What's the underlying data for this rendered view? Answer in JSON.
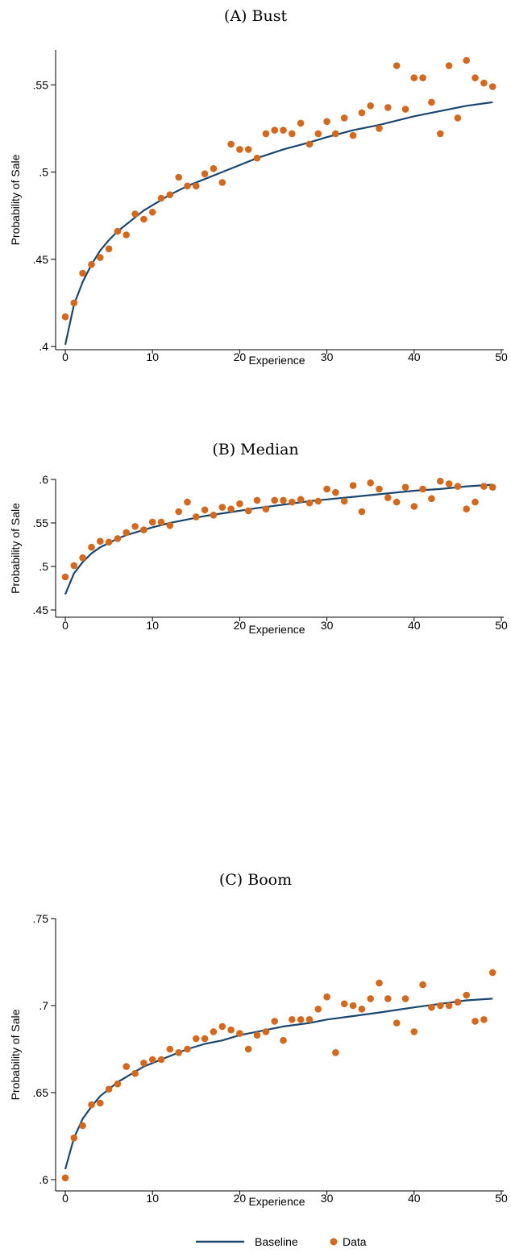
{
  "colors": {
    "baseline": "#1a476f",
    "data": "#d2691e",
    "axis": "#000000"
  },
  "legend": {
    "position": "bottom-center",
    "items": [
      "Baseline",
      "Data"
    ]
  },
  "chart_data": [
    {
      "type": "scatter",
      "title": "(A) Bust",
      "xlabel": "Experience",
      "ylabel": "Probability of Sale",
      "xlim": [
        0,
        50
      ],
      "ylim": [
        0.4,
        0.57
      ],
      "xticks": [
        0,
        10,
        20,
        30,
        40,
        50
      ],
      "xtick_labels": [
        "0",
        "10",
        "20",
        "30",
        "40",
        "50"
      ],
      "yticks": [
        0.4,
        0.45,
        0.5,
        0.55
      ],
      "ytick_labels": [
        ".4",
        ".45",
        ".5",
        ".55"
      ],
      "grid": false,
      "series": [
        {
          "name": "Baseline",
          "kind": "line",
          "x": [
            0,
            1,
            2,
            3,
            4,
            5,
            6,
            7,
            8,
            9,
            10,
            12,
            14,
            16,
            18,
            20,
            22,
            25,
            28,
            30,
            33,
            36,
            40,
            43,
            46,
            49
          ],
          "y": [
            0.401,
            0.424,
            0.437,
            0.447,
            0.455,
            0.461,
            0.466,
            0.47,
            0.474,
            0.478,
            0.481,
            0.487,
            0.492,
            0.496,
            0.5,
            0.504,
            0.508,
            0.513,
            0.517,
            0.52,
            0.524,
            0.527,
            0.532,
            0.535,
            0.538,
            0.54
          ]
        },
        {
          "name": "Data",
          "kind": "scatter",
          "x": [
            0,
            1,
            2,
            3,
            4,
            5,
            6,
            7,
            8,
            9,
            10,
            11,
            12,
            13,
            14,
            15,
            16,
            17,
            18,
            19,
            20,
            21,
            22,
            23,
            24,
            25,
            26,
            27,
            28,
            29,
            30,
            31,
            32,
            33,
            34,
            35,
            36,
            37,
            38,
            39,
            40,
            41,
            42,
            43,
            44,
            45,
            46,
            47,
            48,
            49
          ],
          "y": [
            0.417,
            0.425,
            0.442,
            0.447,
            0.451,
            0.456,
            0.466,
            0.464,
            0.476,
            0.473,
            0.477,
            0.485,
            0.487,
            0.497,
            0.492,
            0.492,
            0.499,
            0.502,
            0.494,
            0.516,
            0.513,
            0.513,
            0.508,
            0.522,
            0.524,
            0.524,
            0.522,
            0.528,
            0.516,
            0.522,
            0.529,
            0.522,
            0.531,
            0.521,
            0.534,
            0.538,
            0.525,
            0.537,
            0.561,
            0.536,
            0.554,
            0.554,
            0.54,
            0.522,
            0.561,
            0.531,
            0.564,
            0.554,
            0.551,
            0.549
          ]
        }
      ]
    },
    {
      "type": "scatter",
      "title": "(B) Median",
      "xlabel": "Experience",
      "ylabel": "Probability of Sale",
      "xlim": [
        0,
        50
      ],
      "ylim": [
        0.45,
        0.6
      ],
      "xticks": [
        0,
        10,
        20,
        30,
        40,
        50
      ],
      "xtick_labels": [
        "0",
        "10",
        "20",
        "30",
        "40",
        "50"
      ],
      "yticks": [
        0.45,
        0.5,
        0.55,
        0.6
      ],
      "ytick_labels": [
        ".45",
        ".5",
        ".55",
        ".6"
      ],
      "grid": false,
      "series": [
        {
          "name": "Baseline",
          "kind": "line",
          "x": [
            0,
            1,
            2,
            3,
            4,
            5,
            6,
            7,
            8,
            9,
            10,
            12,
            14,
            16,
            18,
            20,
            22,
            25,
            28,
            30,
            33,
            36,
            40,
            43,
            46,
            49
          ],
          "y": [
            0.468,
            0.492,
            0.505,
            0.515,
            0.522,
            0.527,
            0.532,
            0.536,
            0.539,
            0.542,
            0.545,
            0.55,
            0.554,
            0.558,
            0.561,
            0.564,
            0.567,
            0.571,
            0.575,
            0.577,
            0.58,
            0.583,
            0.587,
            0.589,
            0.592,
            0.594
          ]
        },
        {
          "name": "Data",
          "kind": "scatter",
          "x": [
            0,
            1,
            2,
            3,
            4,
            5,
            6,
            7,
            8,
            9,
            10,
            11,
            12,
            13,
            14,
            15,
            16,
            17,
            18,
            19,
            20,
            21,
            22,
            23,
            24,
            25,
            26,
            27,
            28,
            29,
            30,
            31,
            32,
            33,
            34,
            35,
            36,
            37,
            38,
            39,
            40,
            41,
            42,
            43,
            44,
            45,
            46,
            47,
            48,
            49
          ],
          "y": [
            0.488,
            0.501,
            0.51,
            0.522,
            0.529,
            0.528,
            0.532,
            0.539,
            0.546,
            0.542,
            0.551,
            0.551,
            0.547,
            0.563,
            0.574,
            0.557,
            0.565,
            0.559,
            0.568,
            0.566,
            0.572,
            0.564,
            0.576,
            0.566,
            0.576,
            0.576,
            0.574,
            0.577,
            0.573,
            0.575,
            0.589,
            0.585,
            0.575,
            0.593,
            0.563,
            0.596,
            0.589,
            0.579,
            0.574,
            0.591,
            0.569,
            0.589,
            0.578,
            0.598,
            0.595,
            0.592,
            0.566,
            0.574,
            0.592,
            0.591
          ]
        }
      ]
    },
    {
      "type": "scatter",
      "title": "(C) Boom",
      "xlabel": "Experience",
      "ylabel": "Probability of Sale",
      "xlim": [
        0,
        50
      ],
      "ylim": [
        0.6,
        0.75
      ],
      "xticks": [
        0,
        10,
        20,
        30,
        40,
        50
      ],
      "xtick_labels": [
        "0",
        "10",
        "20",
        "30",
        "40",
        "50"
      ],
      "yticks": [
        0.6,
        0.65,
        0.7,
        0.75
      ],
      "ytick_labels": [
        ".6",
        ".65",
        ".7",
        ".75"
      ],
      "grid": false,
      "series": [
        {
          "name": "Baseline",
          "kind": "line",
          "x": [
            0,
            1,
            2,
            3,
            4,
            5,
            6,
            7,
            8,
            9,
            10,
            12,
            14,
            16,
            18,
            20,
            22,
            25,
            28,
            30,
            33,
            36,
            40,
            43,
            46,
            49
          ],
          "y": [
            0.606,
            0.624,
            0.635,
            0.642,
            0.648,
            0.652,
            0.656,
            0.659,
            0.662,
            0.665,
            0.667,
            0.671,
            0.675,
            0.678,
            0.68,
            0.683,
            0.685,
            0.688,
            0.69,
            0.692,
            0.694,
            0.696,
            0.699,
            0.701,
            0.703,
            0.704
          ]
        },
        {
          "name": "Data",
          "kind": "scatter",
          "x": [
            0,
            1,
            2,
            3,
            4,
            5,
            6,
            7,
            8,
            9,
            10,
            11,
            12,
            13,
            14,
            15,
            16,
            17,
            18,
            19,
            20,
            21,
            22,
            23,
            24,
            25,
            26,
            27,
            28,
            29,
            30,
            31,
            32,
            33,
            34,
            35,
            36,
            37,
            38,
            39,
            40,
            41,
            42,
            43,
            44,
            45,
            46,
            47,
            48,
            49
          ],
          "y": [
            0.601,
            0.624,
            0.631,
            0.643,
            0.644,
            0.652,
            0.655,
            0.665,
            0.661,
            0.667,
            0.669,
            0.669,
            0.675,
            0.673,
            0.675,
            0.681,
            0.681,
            0.685,
            0.688,
            0.686,
            0.684,
            0.675,
            0.683,
            0.685,
            0.691,
            0.68,
            0.692,
            0.692,
            0.692,
            0.698,
            0.705,
            0.673,
            0.701,
            0.7,
            0.698,
            0.704,
            0.713,
            0.704,
            0.69,
            0.704,
            0.685,
            0.712,
            0.699,
            0.7,
            0.7,
            0.702,
            0.706,
            0.691,
            0.692,
            0.719
          ]
        }
      ]
    }
  ]
}
